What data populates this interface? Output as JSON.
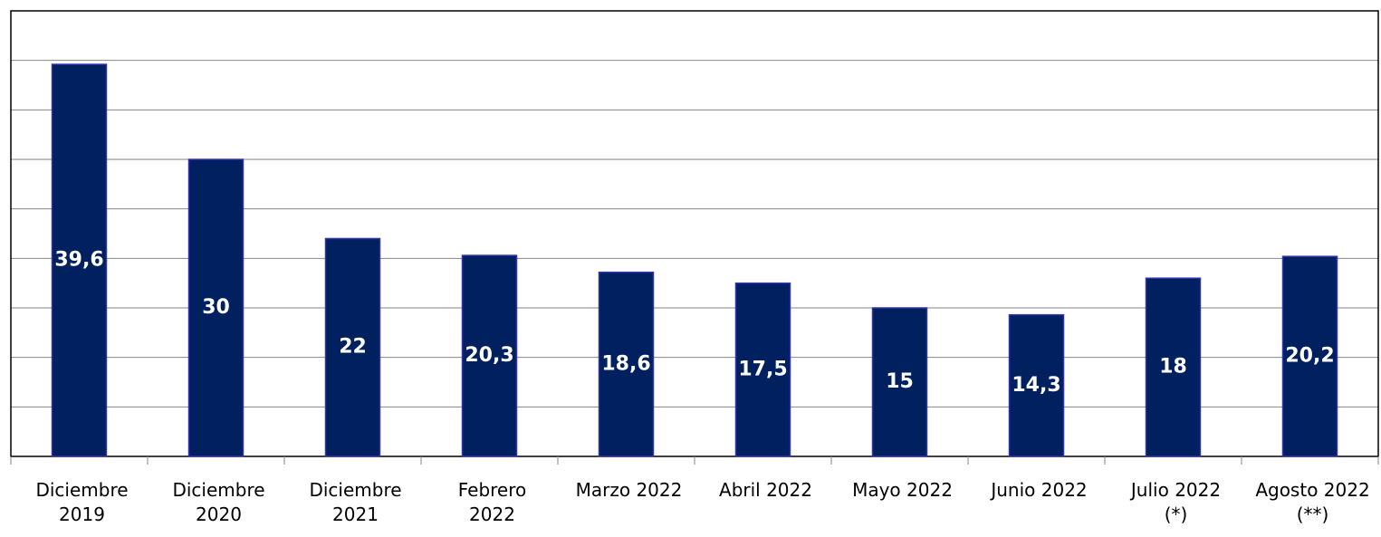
{
  "chart_data": {
    "type": "bar",
    "categories": [
      "Diciembre\n2019",
      "Diciembre\n2020",
      "Diciembre\n2021",
      "Febrero\n2022",
      "Marzo 2022",
      "Abril 2022",
      "Mayo 2022",
      "Junio 2022",
      "Julio 2022\n(*)",
      "Agosto 2022\n(**)"
    ],
    "values": [
      39.6,
      30,
      22,
      20.3,
      18.6,
      17.5,
      15,
      14.3,
      18,
      20.2
    ],
    "value_labels": [
      "39,6",
      "30",
      "22",
      "20,3",
      "18,6",
      "17,5",
      "15",
      "14,3",
      "18",
      "20,2"
    ],
    "color": "#002060",
    "ylim": [
      0,
      45
    ],
    "yticks": [
      0,
      5,
      10,
      15,
      20,
      25,
      30,
      35,
      40,
      45
    ],
    "grid": true
  }
}
